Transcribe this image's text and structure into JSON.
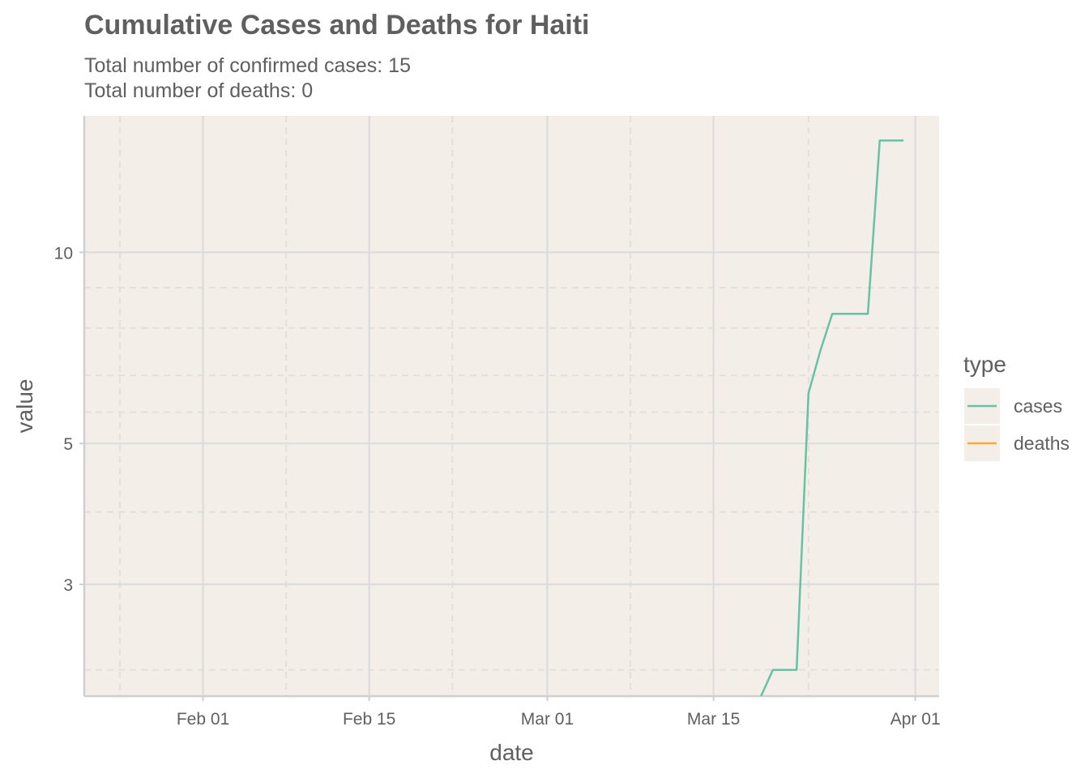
{
  "chart_data": {
    "type": "line",
    "title": "Cumulative Cases and Deaths for Haiti",
    "subtitle_lines": [
      "Total number of confirmed cases: 15",
      "Total number of deaths: 0"
    ],
    "xlabel": "date",
    "ylabel": "value",
    "x_scale": "date",
    "y_scale": "log",
    "xlim": [
      "2020-01-22",
      "2020-04-03"
    ],
    "ylim": [
      2,
      16.4
    ],
    "x_ticks": [
      {
        "value": "2020-02-01",
        "label": "Feb 01"
      },
      {
        "value": "2020-02-15",
        "label": "Feb 15"
      },
      {
        "value": "2020-03-01",
        "label": "Mar 01"
      },
      {
        "value": "2020-03-15",
        "label": "Mar 15"
      },
      {
        "value": "2020-04-01",
        "label": "Apr 01"
      }
    ],
    "x_minor_ticks": [
      "2020-01-25",
      "2020-02-08",
      "2020-02-22",
      "2020-03-08",
      "2020-03-23"
    ],
    "y_ticks": [
      {
        "value": 3,
        "label": "3"
      },
      {
        "value": 5,
        "label": "5"
      },
      {
        "value": 10,
        "label": "10"
      }
    ],
    "y_minor_ticks": [
      2.2,
      3.9,
      5.6,
      6.4,
      7.6,
      8.8
    ],
    "grid": true,
    "legend": {
      "title": "type",
      "position": "right"
    },
    "series": [
      {
        "name": "cases",
        "color": "#66c2a5",
        "points": [
          {
            "x": "2020-03-19",
            "y": 2
          },
          {
            "x": "2020-03-20",
            "y": 2.2
          },
          {
            "x": "2020-03-21",
            "y": 2.2
          },
          {
            "x": "2020-03-22",
            "y": 2.2
          },
          {
            "x": "2020-03-23",
            "y": 6
          },
          {
            "x": "2020-03-24",
            "y": 7
          },
          {
            "x": "2020-03-25",
            "y": 8
          },
          {
            "x": "2020-03-26",
            "y": 8
          },
          {
            "x": "2020-03-27",
            "y": 8
          },
          {
            "x": "2020-03-28",
            "y": 8
          },
          {
            "x": "2020-03-29",
            "y": 15
          },
          {
            "x": "2020-03-30",
            "y": 15
          },
          {
            "x": "2020-03-31",
            "y": 15
          }
        ]
      },
      {
        "name": "deaths",
        "color": "#fca636",
        "points": []
      }
    ],
    "colors": {
      "panel_background": "#f4eee8",
      "grid_major": "#dcdcdc",
      "grid_minor": "#e2e0dc",
      "axis_line": "#cfcfcf",
      "text": "#5f5f5f"
    }
  }
}
